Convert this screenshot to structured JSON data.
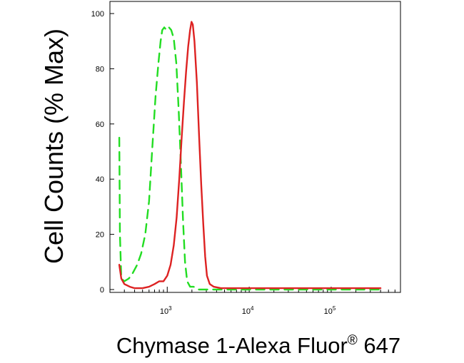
{
  "chart_data": {
    "type": "line",
    "xlabel": "Chymase 1-Alexa Fluor",
    "xlabel_mark": "®",
    "xlabel_suffix": " 647",
    "ylabel": "Cell Counts (% Max)",
    "x_scale": "log",
    "xlim": [
      200,
      700000
    ],
    "ylim": [
      0,
      100
    ],
    "y_ticks": [
      0,
      20,
      40,
      60,
      80,
      100
    ],
    "x_ticks": [
      {
        "value": 1000,
        "base": "10",
        "exp": "3"
      },
      {
        "value": 10000,
        "base": "10",
        "exp": "4"
      },
      {
        "value": 100000,
        "base": "10",
        "exp": "5"
      }
    ],
    "grid": false,
    "series": [
      {
        "color": "#22dd22",
        "style": "dashed",
        "points": [
          [
            260,
            55
          ],
          [
            265,
            20
          ],
          [
            275,
            4
          ],
          [
            300,
            3
          ],
          [
            340,
            4
          ],
          [
            380,
            6
          ],
          [
            430,
            9
          ],
          [
            480,
            13
          ],
          [
            540,
            20
          ],
          [
            600,
            32
          ],
          [
            660,
            52
          ],
          [
            720,
            70
          ],
          [
            780,
            82
          ],
          [
            830,
            90
          ],
          [
            870,
            94
          ],
          [
            920,
            95
          ],
          [
            980,
            94
          ],
          [
            1050,
            95
          ],
          [
            1120,
            94
          ],
          [
            1200,
            91
          ],
          [
            1290,
            82
          ],
          [
            1380,
            65
          ],
          [
            1470,
            45
          ],
          [
            1560,
            25
          ],
          [
            1650,
            10
          ],
          [
            1750,
            3
          ],
          [
            1900,
            1
          ],
          [
            2100,
            1
          ],
          [
            2400,
            0
          ],
          [
            3000,
            0
          ],
          [
            5000,
            0
          ],
          [
            10000,
            0
          ],
          [
            30000,
            0
          ],
          [
            100000,
            0
          ],
          [
            400000,
            0
          ]
        ]
      },
      {
        "color": "#dd2222",
        "style": "solid",
        "points": [
          [
            260,
            9
          ],
          [
            275,
            4
          ],
          [
            300,
            2
          ],
          [
            350,
            1
          ],
          [
            400,
            0.5
          ],
          [
            500,
            0.5
          ],
          [
            600,
            1
          ],
          [
            700,
            2
          ],
          [
            800,
            3
          ],
          [
            900,
            3
          ],
          [
            1000,
            5
          ],
          [
            1100,
            9
          ],
          [
            1200,
            16
          ],
          [
            1300,
            26
          ],
          [
            1400,
            40
          ],
          [
            1500,
            55
          ],
          [
            1600,
            68
          ],
          [
            1700,
            79
          ],
          [
            1800,
            88
          ],
          [
            1900,
            94
          ],
          [
            1980,
            97
          ],
          [
            2050,
            96
          ],
          [
            2150,
            90
          ],
          [
            2300,
            75
          ],
          [
            2450,
            55
          ],
          [
            2600,
            38
          ],
          [
            2750,
            24
          ],
          [
            2900,
            12
          ],
          [
            3050,
            5
          ],
          [
            3300,
            2
          ],
          [
            3700,
            1
          ],
          [
            4500,
            0.5
          ],
          [
            6000,
            0.5
          ],
          [
            10000,
            0.5
          ],
          [
            30000,
            0.5
          ],
          [
            100000,
            0.5
          ],
          [
            400000,
            0.5
          ]
        ]
      }
    ]
  }
}
